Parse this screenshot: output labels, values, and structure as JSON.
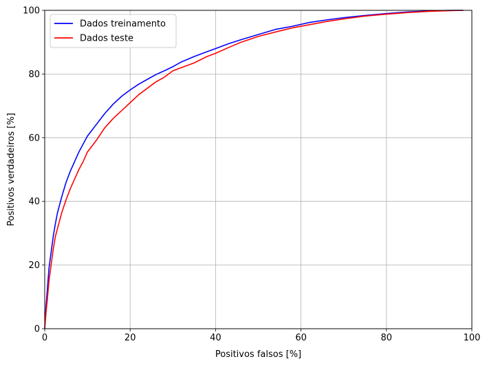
{
  "chart_data": {
    "type": "line",
    "title": "",
    "xlabel": "Positivos falsos [%]",
    "ylabel": "Positivos verdadeiros [%]",
    "xlim": [
      0,
      100
    ],
    "ylim": [
      0,
      100
    ],
    "xticks": [
      "0",
      "20",
      "40",
      "60",
      "80",
      "100"
    ],
    "yticks": [
      "0",
      "20",
      "40",
      "60",
      "80",
      "100"
    ],
    "grid": true,
    "legend_position": "top-left",
    "series": [
      {
        "name": "Dados treinamento",
        "color": "#0000ff",
        "x": [
          0,
          0.3,
          0.6,
          1,
          1.5,
          2,
          2.5,
          3,
          3.5,
          4,
          5,
          6,
          7,
          8,
          9,
          10,
          12,
          14,
          16,
          18,
          20,
          22,
          24,
          26,
          28,
          30,
          32,
          35,
          38,
          40,
          43,
          46,
          50,
          54,
          58,
          62,
          66,
          70,
          75,
          80,
          85,
          90,
          95,
          98
        ],
        "y": [
          0,
          7,
          12,
          19,
          24,
          29,
          33,
          36.5,
          39,
          41.5,
          46,
          49.5,
          52.5,
          55.5,
          58,
          60.5,
          64,
          67.5,
          70.5,
          73,
          75,
          76.8,
          78.3,
          79.8,
          81,
          82.3,
          83.8,
          85.5,
          87,
          88,
          89.5,
          90.8,
          92.4,
          94,
          95,
          96.2,
          97,
          97.7,
          98.4,
          99,
          99.5,
          99.8,
          100,
          100
        ]
      },
      {
        "name": "Dados teste",
        "color": "#ff0000",
        "x": [
          0,
          0.3,
          0.6,
          1,
          1.5,
          2,
          2.5,
          3,
          3.5,
          4,
          5,
          6,
          7,
          8,
          9,
          10,
          12,
          14,
          16,
          18,
          20,
          22,
          24,
          26,
          28,
          30,
          32,
          35,
          38,
          40,
          43,
          46,
          50,
          54,
          58,
          62,
          66,
          70,
          75,
          80,
          85,
          90,
          95,
          98
        ],
        "y": [
          0,
          5,
          9,
          15,
          20,
          25,
          29,
          31.5,
          34,
          36.5,
          40.5,
          44,
          47,
          50,
          52.5,
          55.5,
          59,
          63,
          66,
          68.5,
          71,
          73.5,
          75.5,
          77.5,
          79,
          81,
          82,
          83.5,
          85.5,
          86.5,
          88.3,
          90,
          91.8,
          93.2,
          94.5,
          95.5,
          96.5,
          97.3,
          98.2,
          98.8,
          99.3,
          99.7,
          99.9,
          100
        ]
      }
    ]
  }
}
